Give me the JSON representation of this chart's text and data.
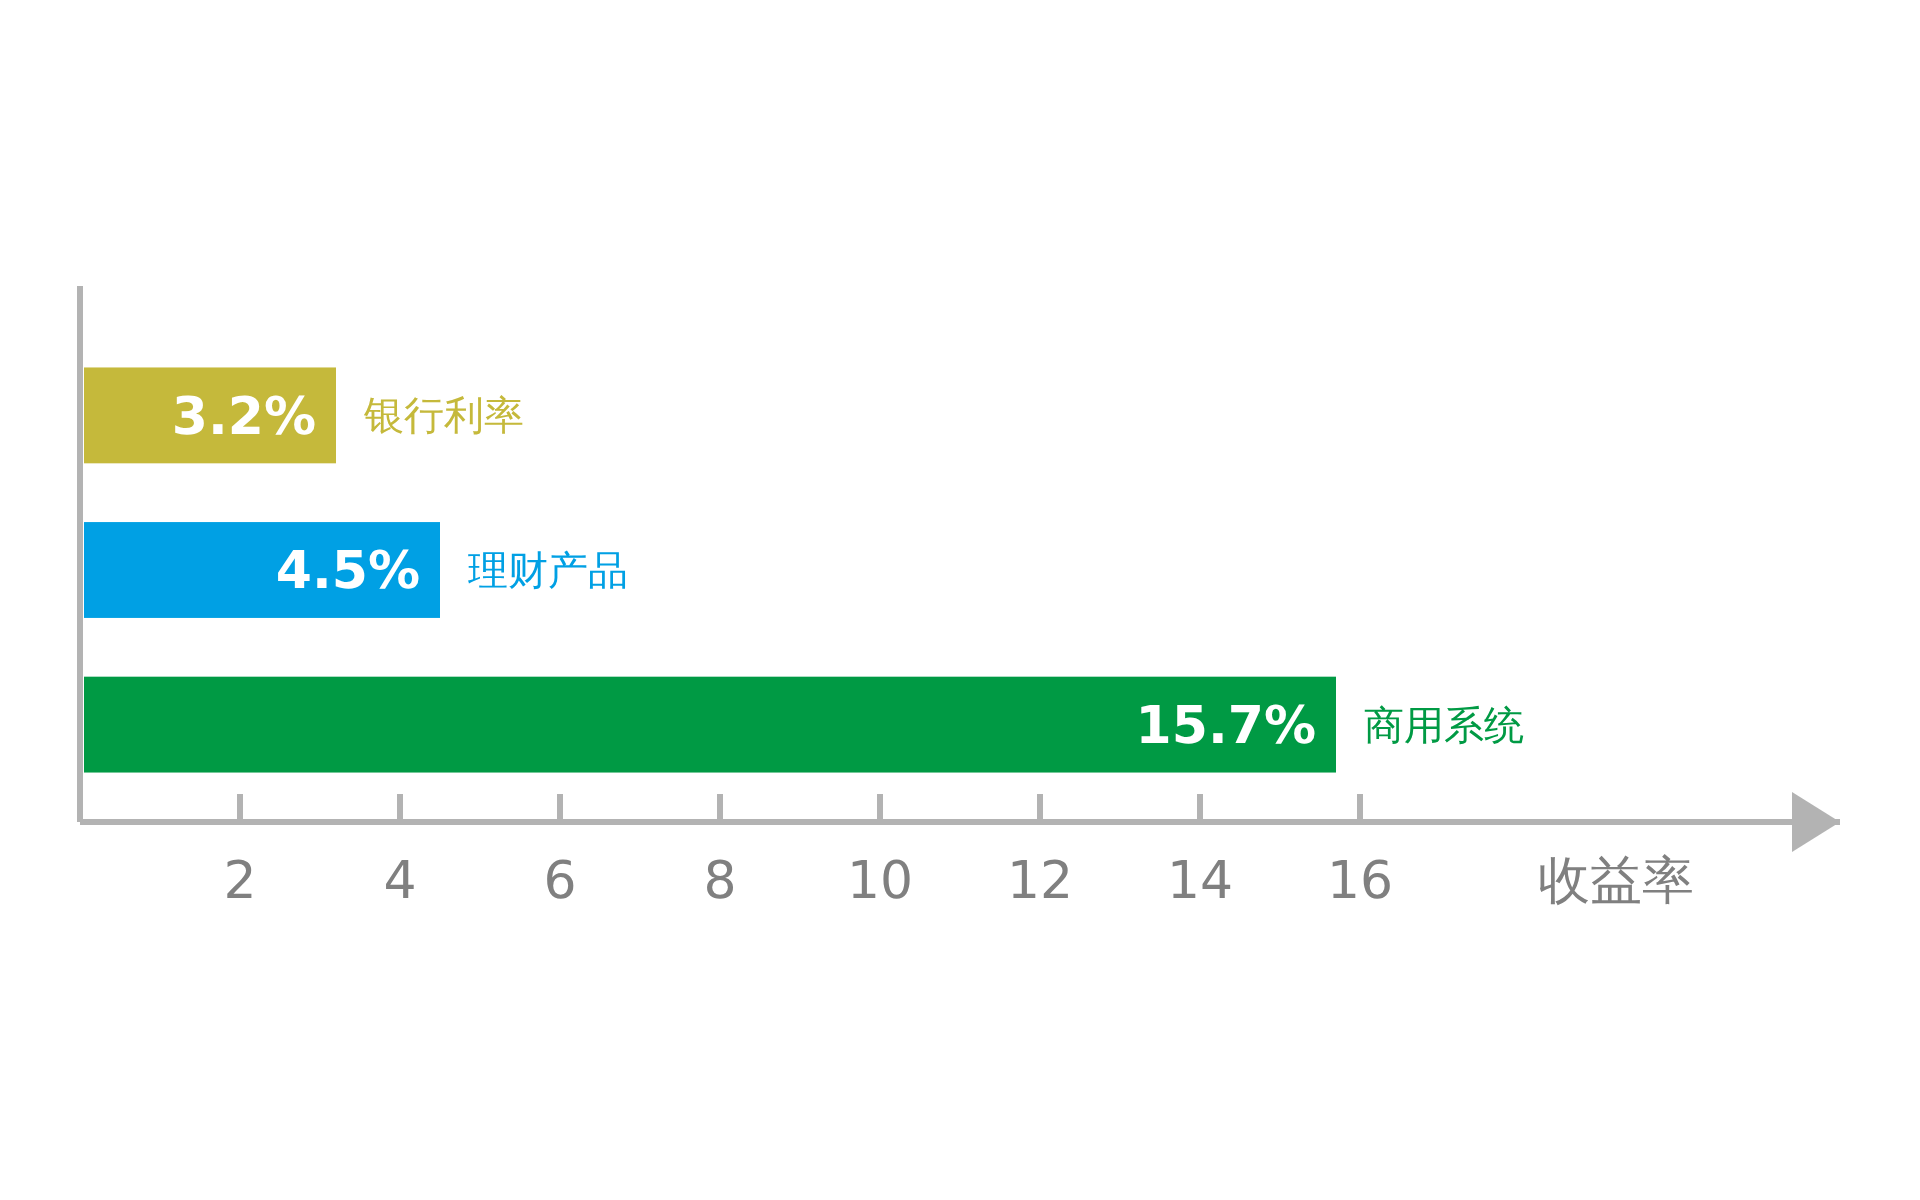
{
  "chart_data": {
    "type": "bar",
    "orientation": "horizontal",
    "categories": [
      "银行利率",
      "理财产品",
      "商用系统"
    ],
    "values": [
      3.2,
      4.5,
      15.7
    ],
    "colors": [
      "#c5b93b",
      "#00a0e4",
      "#009a44"
    ],
    "value_labels": [
      "3.2%",
      "4.5%",
      "15.7%"
    ],
    "xlabel": "收益率",
    "xlim": [
      0,
      22
    ],
    "xticks": [
      2,
      4,
      6,
      8,
      10,
      12,
      14,
      16
    ],
    "grid": false
  }
}
